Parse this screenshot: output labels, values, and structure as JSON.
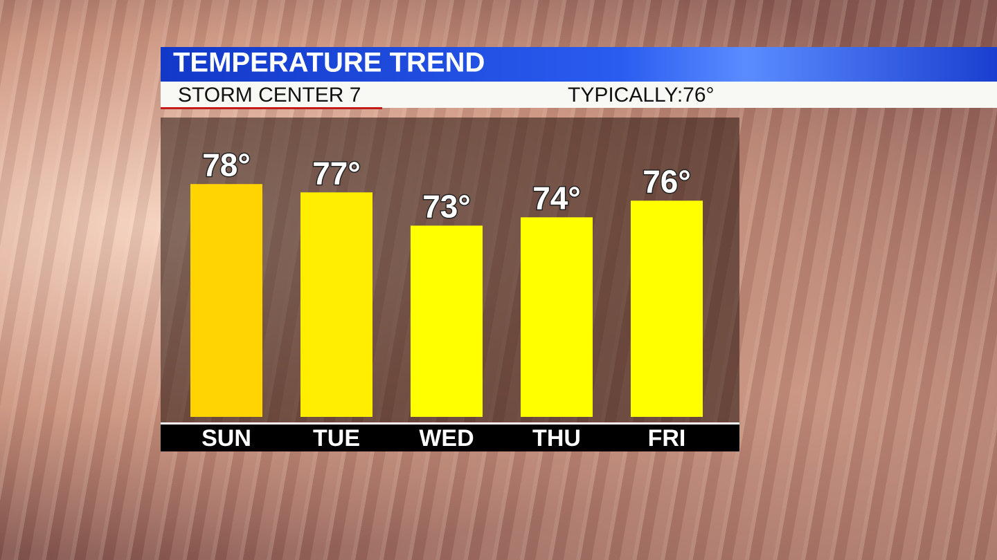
{
  "chart_data": {
    "type": "bar",
    "title": "TEMPERATURE TREND",
    "subtitle": "STORM CENTER 7",
    "annotation": "TYPICALLY:76°",
    "categories": [
      "SUN",
      "TUE",
      "WED",
      "THU",
      "FRI"
    ],
    "values": [
      78,
      77,
      73,
      74,
      76
    ],
    "value_labels": [
      "78°",
      "77°",
      "73°",
      "74°",
      "76°"
    ],
    "colors": [
      "#ffd400",
      "#ffee00",
      "#ffff00",
      "#ffff00",
      "#ffff00"
    ],
    "ylim": [
      50,
      86
    ]
  }
}
